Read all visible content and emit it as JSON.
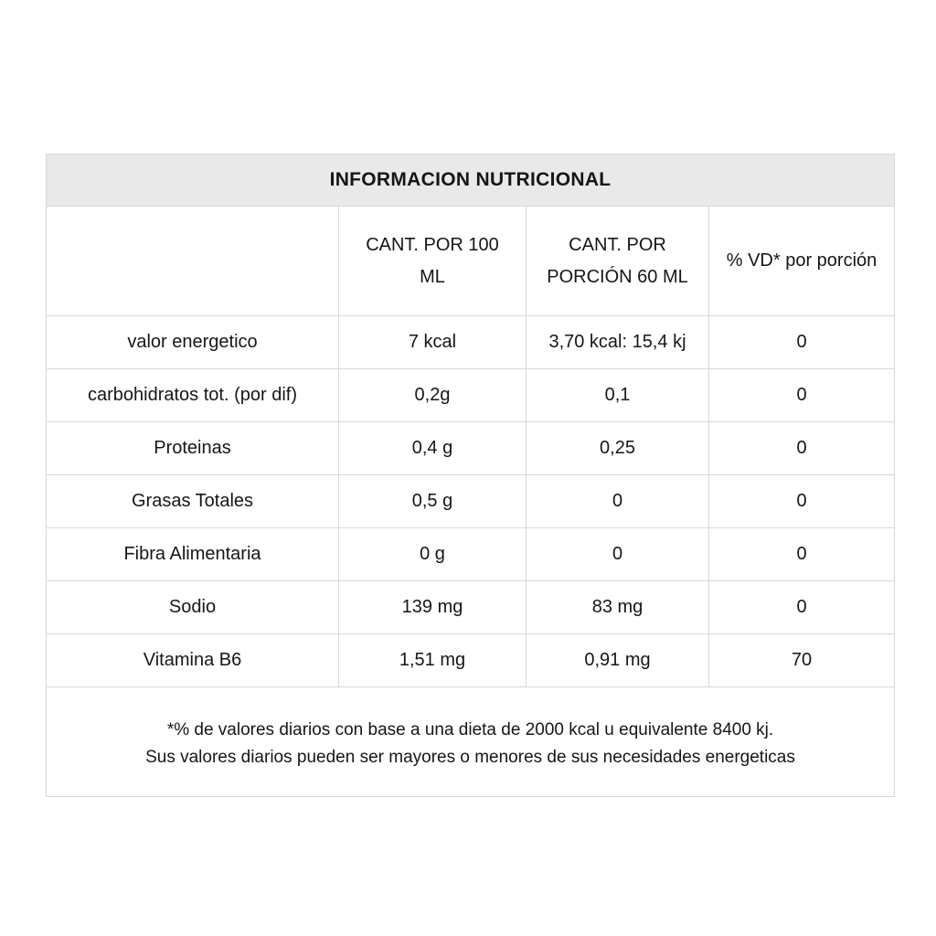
{
  "title": "INFORMACION NUTRICIONAL",
  "table": {
    "header": {
      "col_label": "",
      "col_per100": "CANT. POR 100 ML",
      "col_porcion": "CANT. POR PORCIÓN 60 ML",
      "col_vd": "% VD* por porción"
    },
    "rows": [
      {
        "label": "valor energetico",
        "per100": "7 kcal",
        "porcion": "3,70 kcal: 15,4 kj",
        "vd": "0"
      },
      {
        "label": "carbohidratos tot. (por dif)",
        "per100": "0,2g",
        "porcion": "0,1",
        "vd": "0"
      },
      {
        "label": "Proteinas",
        "per100": "0,4 g",
        "porcion": "0,25",
        "vd": "0"
      },
      {
        "label": "Grasas Totales",
        "per100": "0,5 g",
        "porcion": "0",
        "vd": "0"
      },
      {
        "label": "Fibra Alimentaria",
        "per100": "0 g",
        "porcion": "0",
        "vd": "0"
      },
      {
        "label": "Sodio",
        "per100": "139 mg",
        "porcion": "83 mg",
        "vd": "0"
      },
      {
        "label": "Vitamina B6",
        "per100": "1,51 mg",
        "porcion": "0,91 mg",
        "vd": "70"
      }
    ]
  },
  "footnote": {
    "line1": "*% de valores diarios con base a una dieta de 2000 kcal u equivalente 8400 kj.",
    "line2": "Sus valores diarios pueden ser mayores o menores de sus necesidades energeticas"
  },
  "colors": {
    "title_background": "#e9e9e9",
    "border": "#d9d9d9",
    "text": "#161616",
    "page_background": "#ffffff"
  }
}
